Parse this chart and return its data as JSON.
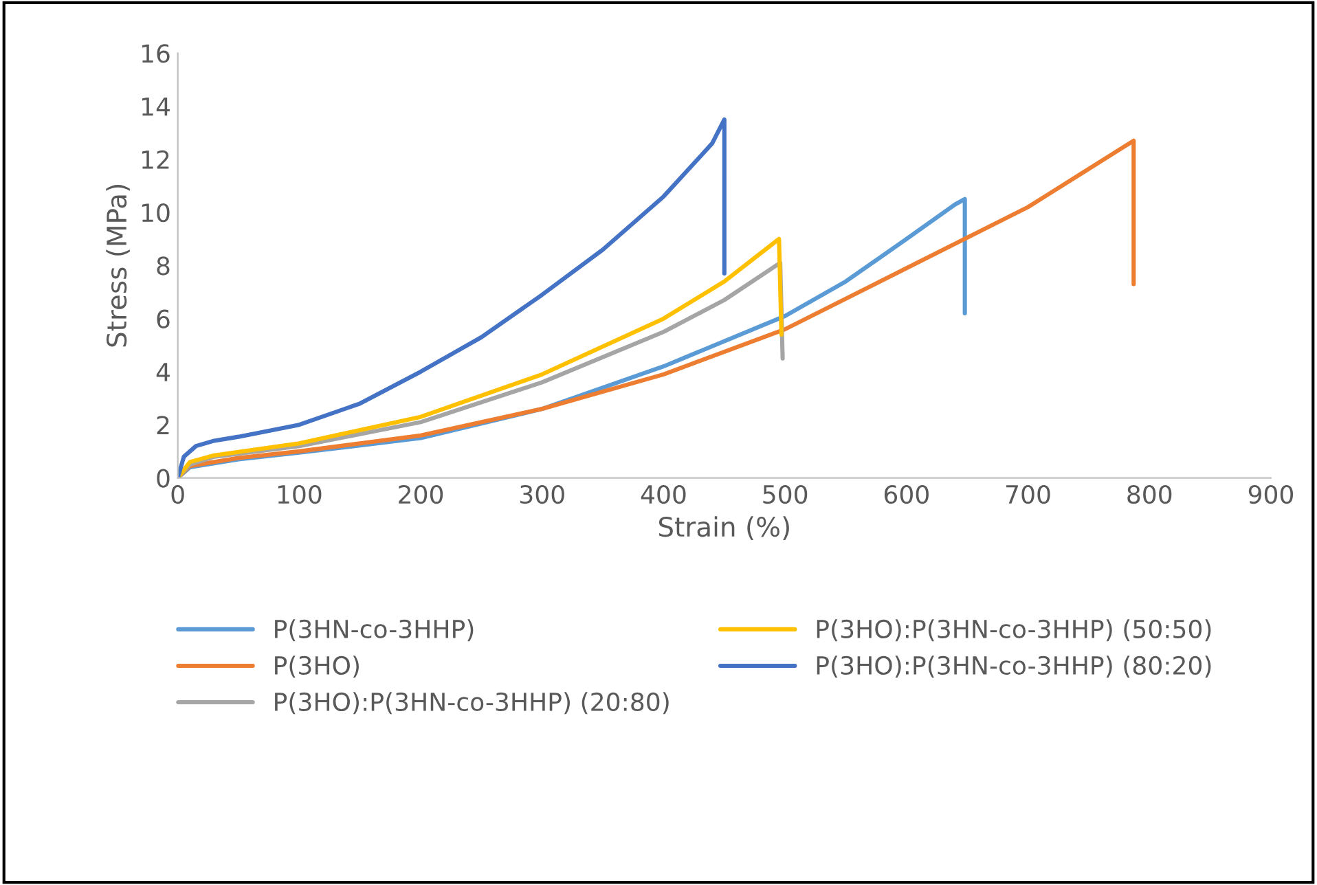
{
  "chart_data": {
    "type": "line",
    "xlabel": "Strain (%)",
    "ylabel": "Stress (MPa)",
    "xlim": [
      0,
      900
    ],
    "xticks": [
      0,
      100,
      200,
      300,
      400,
      500,
      600,
      700,
      800,
      900
    ],
    "ylim": [
      0,
      16
    ],
    "yticks": [
      0,
      2,
      4,
      6,
      8,
      10,
      12,
      14,
      16
    ],
    "grid": false,
    "legend": "bottom",
    "marker": "none",
    "line_style": "solid",
    "series": [
      {
        "name": "P(3HN-co-3HHP)",
        "color": "#5b9bd5",
        "x": [
          0,
          10,
          50,
          100,
          200,
          300,
          400,
          500,
          550,
          600,
          640,
          648,
          648
        ],
        "values": [
          0,
          0.4,
          0.7,
          0.95,
          1.5,
          2.6,
          4.2,
          6.1,
          7.4,
          9.0,
          10.3,
          10.5,
          6.2
        ]
      },
      {
        "name": "P(3HO)",
        "color": "#ed7d31",
        "x": [
          0,
          10,
          50,
          100,
          200,
          300,
          400,
          500,
          600,
          700,
          780,
          787,
          787
        ],
        "values": [
          0,
          0.45,
          0.75,
          1.0,
          1.6,
          2.6,
          3.9,
          5.6,
          7.9,
          10.2,
          12.5,
          12.7,
          7.3
        ]
      },
      {
        "name": "P(3HO):P(3HN-co-3HHP) (20:80)",
        "color": "#a5a5a5",
        "x": [
          0,
          10,
          30,
          100,
          200,
          300,
          400,
          450,
          496,
          498
        ],
        "values": [
          0,
          0.5,
          0.8,
          1.2,
          2.1,
          3.6,
          5.5,
          6.7,
          8.1,
          4.5
        ]
      },
      {
        "name": "P(3HO):P(3HN-co-3HHP) (50:50)",
        "color": "#ffc000",
        "x": [
          0,
          10,
          30,
          100,
          200,
          300,
          400,
          450,
          495,
          497
        ],
        "values": [
          0,
          0.6,
          0.85,
          1.3,
          2.3,
          3.9,
          6.0,
          7.4,
          9.0,
          5.4
        ]
      },
      {
        "name": "P(3HO):P(3HN-co-3HHP) (80:20)",
        "color": "#4472c4",
        "x": [
          0,
          5,
          15,
          30,
          50,
          100,
          150,
          200,
          250,
          300,
          350,
          400,
          440,
          450,
          450
        ],
        "values": [
          0,
          0.8,
          1.2,
          1.4,
          1.55,
          2.0,
          2.8,
          4.0,
          5.3,
          6.9,
          8.6,
          10.6,
          12.6,
          13.5,
          7.7
        ]
      }
    ]
  }
}
